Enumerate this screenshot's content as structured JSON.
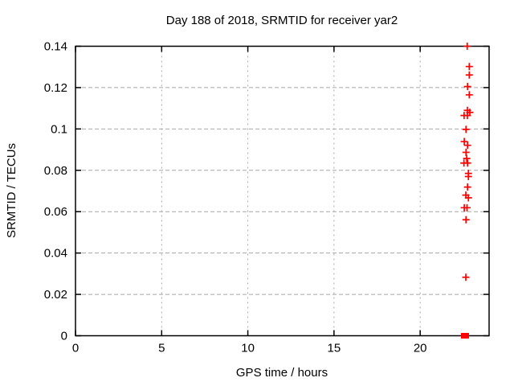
{
  "chart_data": {
    "type": "scatter",
    "title": "Day 188 of 2018, SRMTID for receiver yar2",
    "xlabel": "GPS time / hours",
    "ylabel": "SRMTID / TECUs",
    "xlim": [
      0,
      24
    ],
    "ylim": [
      0,
      0.14
    ],
    "xticks": {
      "values": [
        0,
        5,
        10,
        15,
        20
      ],
      "labels": [
        "0",
        "5",
        "10",
        "15",
        "20"
      ]
    },
    "yticks": {
      "values": [
        0,
        0.02,
        0.04,
        0.06,
        0.08,
        0.1,
        0.12,
        0.14
      ],
      "labels": [
        "0",
        "0.02",
        "0.04",
        "0.06",
        "0.08",
        "0.1",
        "0.12",
        "0.14"
      ]
    },
    "grid": true,
    "legend_position": "none",
    "series": [
      {
        "marker": "plus",
        "color": "#ff0000",
        "points": [
          [
            22.73,
            0.14
          ],
          [
            22.85,
            0.1302
          ],
          [
            22.85,
            0.1261
          ],
          [
            22.75,
            0.1205
          ],
          [
            22.85,
            0.1165
          ],
          [
            22.74,
            0.109
          ],
          [
            22.88,
            0.108
          ],
          [
            22.55,
            0.1065
          ],
          [
            22.74,
            0.1065
          ],
          [
            22.66,
            0.0998
          ],
          [
            22.56,
            0.0939
          ],
          [
            22.75,
            0.0921
          ],
          [
            22.66,
            0.0887
          ],
          [
            22.7,
            0.0857
          ],
          [
            22.54,
            0.0835
          ],
          [
            22.75,
            0.0835
          ],
          [
            22.8,
            0.0785
          ],
          [
            22.8,
            0.077
          ],
          [
            22.75,
            0.0719
          ],
          [
            22.65,
            0.068
          ],
          [
            22.8,
            0.0667
          ],
          [
            22.56,
            0.0619
          ],
          [
            22.72,
            0.0619
          ],
          [
            22.66,
            0.0561
          ],
          [
            22.65,
            0.0283
          ]
        ]
      },
      {
        "marker": "filled-square",
        "color": "#ff0000",
        "points": [
          [
            22.53,
            0.0
          ],
          [
            22.67,
            0.0
          ]
        ]
      }
    ]
  },
  "style": {
    "background": "#ffffff",
    "border_color": "#000000",
    "grid_color": "#a6a6a6",
    "text_color": "#000000",
    "marker_color": "#ff0000"
  }
}
